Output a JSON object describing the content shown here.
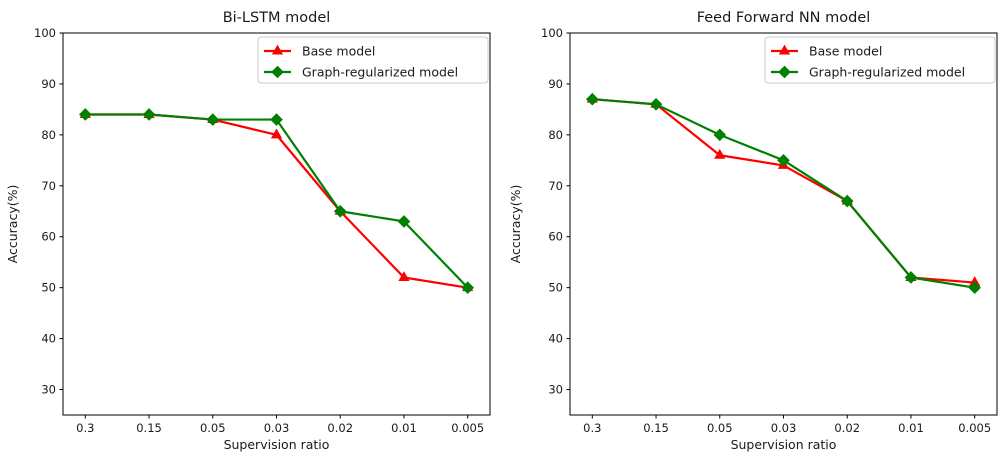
{
  "figure": {
    "background": "#ffffff",
    "text_color": "#1a1a1a",
    "axis_color": "#000000",
    "legend_border_color": "#cccccc"
  },
  "chart_data": [
    {
      "type": "line",
      "title": "Bi-LSTM model",
      "xlabel": "Supervision ratio",
      "ylabel": "Accuracy(%)",
      "categories": [
        "0.3",
        "0.15",
        "0.05",
        "0.03",
        "0.02",
        "0.01",
        "0.005"
      ],
      "yticks": [
        30,
        40,
        50,
        60,
        70,
        80,
        90,
        100
      ],
      "ylim": [
        25,
        100
      ],
      "grid": false,
      "legend_position": "upper right",
      "series": [
        {
          "name": "Base model",
          "color": "#ff0000",
          "marker": "triangle-up",
          "values": [
            84,
            84,
            83,
            80,
            65,
            52,
            50
          ]
        },
        {
          "name": "Graph-regularized model",
          "color": "#008000",
          "marker": "diamond",
          "values": [
            84,
            84,
            83,
            83,
            65,
            63,
            50
          ]
        }
      ]
    },
    {
      "type": "line",
      "title": "Feed Forward NN model",
      "xlabel": "Supervision ratio",
      "ylabel": "Accuracy(%)",
      "categories": [
        "0.3",
        "0.15",
        "0.05",
        "0.03",
        "0.02",
        "0.01",
        "0.005"
      ],
      "yticks": [
        30,
        40,
        50,
        60,
        70,
        80,
        90,
        100
      ],
      "ylim": [
        25,
        100
      ],
      "grid": false,
      "legend_position": "upper right",
      "series": [
        {
          "name": "Base model",
          "color": "#ff0000",
          "marker": "triangle-up",
          "values": [
            87,
            86,
            76,
            74,
            67,
            52,
            51
          ]
        },
        {
          "name": "Graph-regularized model",
          "color": "#008000",
          "marker": "diamond",
          "values": [
            87,
            86,
            80,
            75,
            67,
            52,
            50
          ]
        }
      ]
    }
  ]
}
